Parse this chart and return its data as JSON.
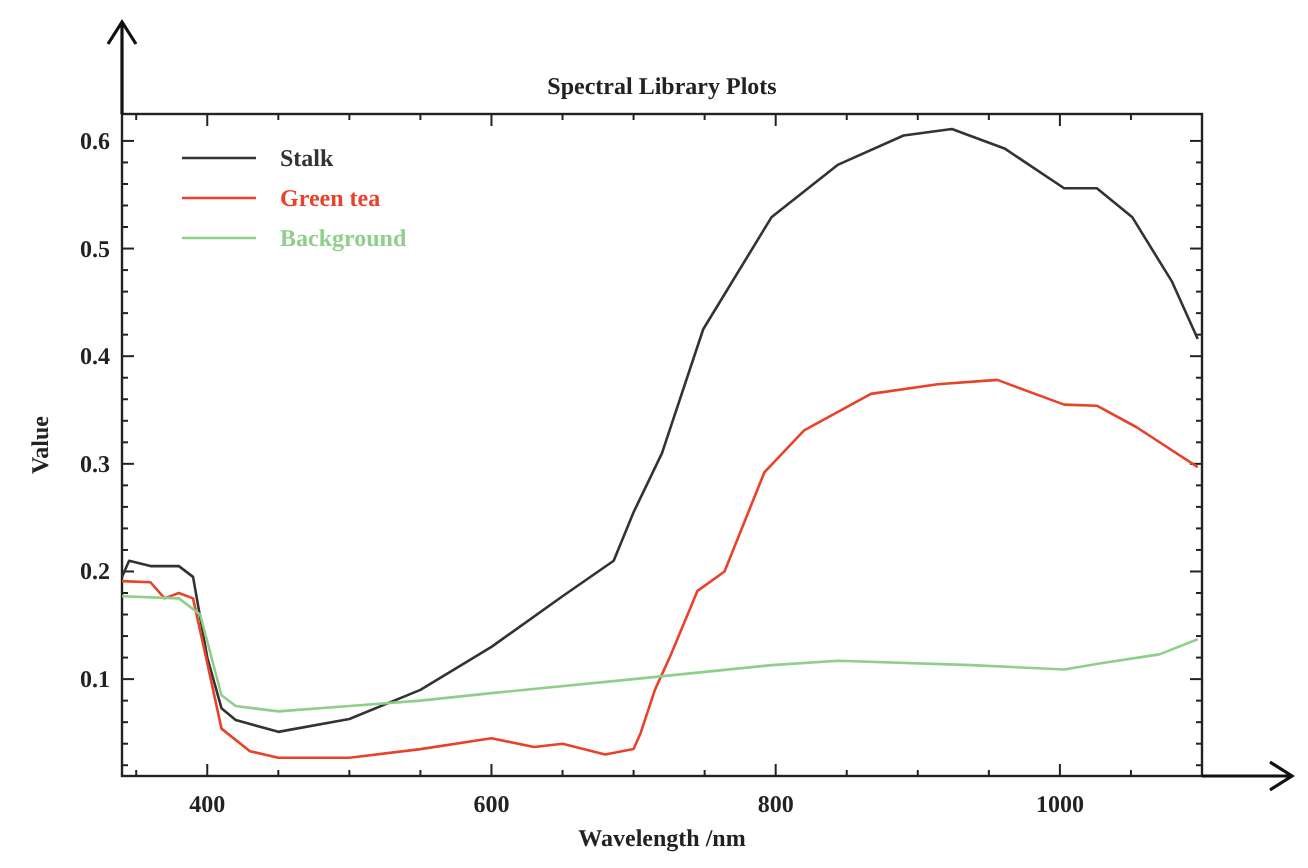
{
  "chart_data": {
    "type": "line",
    "title": "Spectral Library Plots",
    "xlabel": "Wavelength /nm",
    "ylabel": "Value",
    "xlim": [
      340,
      1100
    ],
    "ylim": [
      0.01,
      0.625
    ],
    "xticks": [
      {
        "value": 350,
        "label": null
      },
      400,
      {
        "value": 450,
        "label": null
      },
      {
        "value": 500,
        "label": null
      },
      {
        "value": 550,
        "label": null
      },
      600,
      {
        "value": 650,
        "label": null
      },
      {
        "value": 700,
        "label": null
      },
      {
        "value": 750,
        "label": null
      },
      800,
      {
        "value": 850,
        "label": null
      },
      {
        "value": 900,
        "label": null
      },
      {
        "value": 950,
        "label": null
      },
      1000,
      {
        "value": 1050,
        "label": null
      }
    ],
    "yticks": [
      {
        "value": 0.02,
        "label": null
      },
      {
        "value": 0.04,
        "label": null
      },
      {
        "value": 0.06,
        "label": null
      },
      {
        "value": 0.08,
        "label": null
      },
      0.1,
      {
        "value": 0.12,
        "label": null
      },
      {
        "value": 0.14,
        "label": null
      },
      {
        "value": 0.16,
        "label": null
      },
      {
        "value": 0.18,
        "label": null
      },
      0.2,
      {
        "value": 0.22,
        "label": null
      },
      {
        "value": 0.24,
        "label": null
      },
      {
        "value": 0.26,
        "label": null
      },
      {
        "value": 0.28,
        "label": null
      },
      0.3,
      {
        "value": 0.32,
        "label": null
      },
      {
        "value": 0.34,
        "label": null
      },
      {
        "value": 0.36,
        "label": null
      },
      {
        "value": 0.38,
        "label": null
      },
      0.4,
      {
        "value": 0.42,
        "label": null
      },
      {
        "value": 0.44,
        "label": null
      },
      {
        "value": 0.46,
        "label": null
      },
      {
        "value": 0.48,
        "label": null
      },
      0.5,
      {
        "value": 0.52,
        "label": null
      },
      {
        "value": 0.54,
        "label": null
      },
      {
        "value": 0.56,
        "label": null
      },
      {
        "value": 0.58,
        "label": null
      },
      0.6
    ],
    "grid": false,
    "legend": "top left",
    "line_style": "solid",
    "marker": "none",
    "series": [
      {
        "name": "Stalk",
        "color": "#333333",
        "x": [
          340,
          345,
          360,
          380,
          390,
          400,
          410,
          420,
          450,
          500,
          550,
          600,
          650,
          686,
          700,
          720,
          749,
          797,
          844,
          890,
          924,
          961,
          1003,
          1026,
          1051,
          1079,
          1097
        ],
        "values": [
          0.195,
          0.21,
          0.205,
          0.205,
          0.195,
          0.12,
          0.073,
          0.062,
          0.051,
          0.063,
          0.09,
          0.13,
          0.177,
          0.21,
          0.255,
          0.31,
          0.425,
          0.529,
          0.578,
          0.605,
          0.611,
          0.593,
          0.556,
          0.556,
          0.529,
          0.469,
          0.416
        ]
      },
      {
        "name": "Green tea",
        "color": "#e8432a",
        "x": [
          340,
          360,
          370,
          380,
          390,
          400,
          410,
          430,
          450,
          500,
          550,
          600,
          630,
          650,
          680,
          700,
          705,
          715,
          726,
          745,
          764,
          792,
          820,
          867,
          914,
          956,
          1003,
          1026,
          1054,
          1097
        ],
        "values": [
          0.191,
          0.19,
          0.175,
          0.18,
          0.175,
          0.115,
          0.054,
          0.033,
          0.027,
          0.027,
          0.035,
          0.045,
          0.037,
          0.04,
          0.03,
          0.035,
          0.05,
          0.09,
          0.122,
          0.182,
          0.2,
          0.292,
          0.331,
          0.365,
          0.374,
          0.378,
          0.355,
          0.354,
          0.334,
          0.297
        ]
      },
      {
        "name": "Background",
        "color": "#8fcf8a",
        "x": [
          340,
          380,
          395,
          410,
          420,
          450,
          500,
          550,
          600,
          700,
          797,
          844,
          938,
          1003,
          1030,
          1070,
          1097
        ],
        "values": [
          0.177,
          0.175,
          0.16,
          0.085,
          0.075,
          0.07,
          0.075,
          0.08,
          0.087,
          0.1,
          0.113,
          0.117,
          0.113,
          0.109,
          0.115,
          0.123,
          0.137
        ]
      }
    ]
  }
}
